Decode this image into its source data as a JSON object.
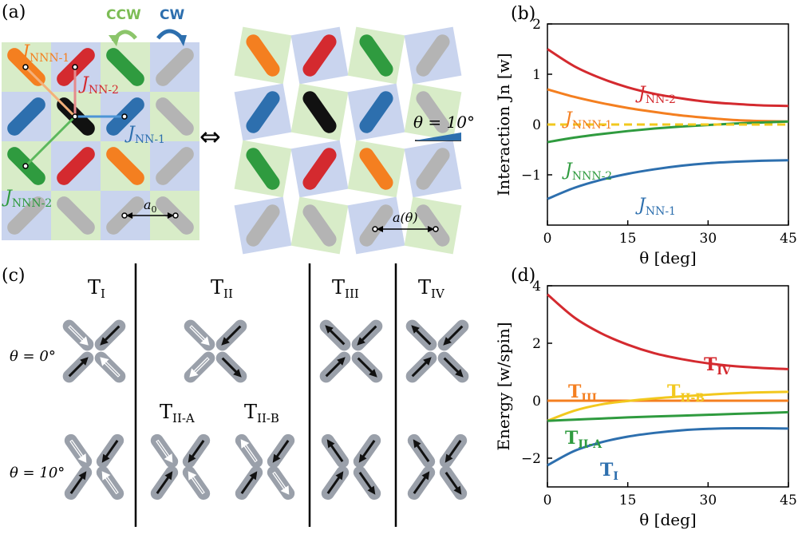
{
  "colors": {
    "red": "#d42a2f",
    "orange": "#f47f20",
    "green": "#2f9b3f",
    "blue": "#2d6fae",
    "yellow": "#f2c81e",
    "black": "#111111",
    "gray": "#b4b4b4",
    "tile_green": "#d8ecc8",
    "tile_blue": "#c9d4ee"
  },
  "panel_a": {
    "label": "(a)",
    "ccw": "CCW",
    "cw": "CW",
    "j_nnn1": "J",
    "j_nnn1_sub": "NNN-1",
    "j_nn2": "J",
    "j_nn2_sub": "NN-2",
    "j_nn1": "J",
    "j_nn1_sub": "NN-1",
    "j_nnn2": "J",
    "j_nnn2_sub": "NNN-2",
    "a0": "a",
    "a0_sub": "0",
    "equiv": "⇔",
    "theta_label": "θ = 10°",
    "a_theta": "a(θ)"
  },
  "panel_c": {
    "label": "(c)",
    "columns": [
      {
        "name": "T",
        "sub": "I"
      },
      {
        "name": "T",
        "sub": "II"
      },
      {
        "name": "T",
        "sub": "III"
      },
      {
        "name": "T",
        "sub": "IV"
      }
    ],
    "sub_columns": [
      {
        "name": "T",
        "sub": "II-A"
      },
      {
        "name": "T",
        "sub": "II-B"
      }
    ],
    "row0": "θ = 0°",
    "row10": "θ = 10°"
  },
  "chart_data": [
    {
      "panel": "(b)",
      "type": "line",
      "xlabel": "θ [deg]",
      "ylabel": "Interaction Jn [w]",
      "xlim": [
        0,
        45
      ],
      "ylim": [
        -2,
        2
      ],
      "xticks": [
        "0",
        "15",
        "30",
        "45"
      ],
      "yticks": [
        "−1",
        "0",
        "1",
        "2"
      ],
      "x": [
        0,
        5,
        10,
        15,
        20,
        25,
        30,
        35,
        40,
        45
      ],
      "series": [
        {
          "name": "JNN-2",
          "label_main": "J",
          "label_sub": "NN-2",
          "color": "#d42a2f",
          "values": [
            1.5,
            1.16,
            0.92,
            0.74,
            0.61,
            0.52,
            0.45,
            0.41,
            0.38,
            0.37
          ]
        },
        {
          "name": "JNNN-1",
          "label_main": "J",
          "label_sub": "NNN-1",
          "color": "#f47f20",
          "values": [
            0.7,
            0.55,
            0.43,
            0.33,
            0.25,
            0.18,
            0.13,
            0.09,
            0.07,
            0.06
          ]
        },
        {
          "name": "JNNN-2",
          "label_main": "J",
          "label_sub": "NNN-2",
          "color": "#2f9b3f",
          "values": [
            -0.35,
            -0.26,
            -0.19,
            -0.13,
            -0.08,
            -0.04,
            -0.01,
            0.02,
            0.04,
            0.06
          ]
        },
        {
          "name": "JNN-1",
          "label_main": "J",
          "label_sub": "NN-1",
          "color": "#2d6fae",
          "values": [
            -1.48,
            -1.26,
            -1.1,
            -0.98,
            -0.89,
            -0.82,
            -0.77,
            -0.74,
            -0.72,
            -0.71
          ]
        },
        {
          "name": "zero",
          "label_main": "",
          "label_sub": "",
          "color": "#f2c81e",
          "dashed": true,
          "values": [
            0,
            0,
            0,
            0,
            0,
            0,
            0,
            0,
            0,
            0
          ]
        }
      ]
    },
    {
      "panel": "(d)",
      "type": "line",
      "xlabel": "θ [deg]",
      "ylabel": "Energy [w/spin]",
      "xlim": [
        0,
        45
      ],
      "ylim": [
        -3,
        4
      ],
      "xticks": [
        "0",
        "15",
        "30",
        "45"
      ],
      "yticks": [
        "−2",
        "0",
        "2",
        "4"
      ],
      "x": [
        0,
        5,
        10,
        15,
        20,
        25,
        30,
        35,
        40,
        45
      ],
      "series": [
        {
          "name": "TIV",
          "label_main": "T",
          "label_sub": "IV",
          "color": "#d42a2f",
          "values": [
            3.7,
            2.9,
            2.35,
            1.95,
            1.65,
            1.45,
            1.3,
            1.2,
            1.14,
            1.1
          ]
        },
        {
          "name": "TIII",
          "label_main": "T",
          "label_sub": "III",
          "color": "#f47f20",
          "values": [
            0,
            0,
            0,
            0,
            0,
            0,
            0,
            0,
            0,
            0
          ]
        },
        {
          "name": "TII-B",
          "label_main": "T",
          "label_sub": "II-B",
          "color": "#f2c81e",
          "values": [
            -0.7,
            -0.35,
            -0.13,
            -0.01,
            0.08,
            0.15,
            0.21,
            0.26,
            0.29,
            0.31
          ]
        },
        {
          "name": "TII-A",
          "label_main": "T",
          "label_sub": "II-A",
          "color": "#2f9b3f",
          "values": [
            -0.7,
            -0.66,
            -0.62,
            -0.58,
            -0.55,
            -0.52,
            -0.49,
            -0.46,
            -0.43,
            -0.4
          ]
        },
        {
          "name": "TI",
          "label_main": "T",
          "label_sub": "I",
          "color": "#2d6fae",
          "values": [
            -2.25,
            -1.75,
            -1.45,
            -1.25,
            -1.12,
            -1.03,
            -0.98,
            -0.96,
            -0.96,
            -0.97
          ]
        }
      ]
    }
  ]
}
